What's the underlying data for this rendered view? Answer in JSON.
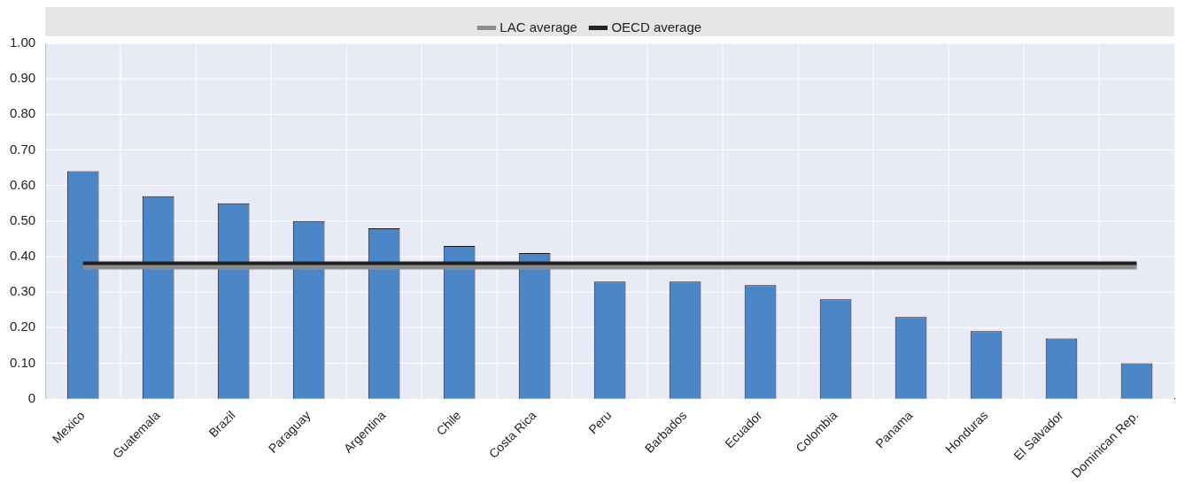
{
  "chart_data": {
    "type": "bar",
    "categories": [
      "Mexico",
      "Guatemala",
      "Brazil",
      "Paraguay",
      "Argentina",
      "Chile",
      "Costa Rica",
      "Peru",
      "Barbados",
      "Ecuador",
      "Colombia",
      "Panama",
      "Honduras",
      "El Salvador",
      "Dominican Rep."
    ],
    "series": [
      {
        "color": "#4a86c8",
        "values": [
          0.64,
          0.57,
          0.55,
          0.5,
          0.48,
          0.43,
          0.41,
          0.33,
          0.33,
          0.32,
          0.28,
          0.23,
          0.19,
          0.17,
          0.1
        ]
      },
      {
        "type": "line",
        "name": "LAC average",
        "color": "#8c8c8c",
        "values": [
          0.37,
          0.37,
          0.37,
          0.37,
          0.37,
          0.37,
          0.37,
          0.37,
          0.37,
          0.37,
          0.37,
          0.37,
          0.37,
          0.37,
          0.37
        ]
      },
      {
        "type": "line",
        "name": "OECD average",
        "color": "#222222",
        "values": [
          0.38,
          0.38,
          0.38,
          0.38,
          0.38,
          0.38,
          0.38,
          0.38,
          0.38,
          0.38,
          0.38,
          0.38,
          0.38,
          0.38,
          0.38
        ]
      }
    ],
    "ylim": [
      0,
      1
    ],
    "yticks": [
      0,
      {
        "value": 0.1,
        "label": "0.10"
      },
      {
        "value": 0.2,
        "label": "0.20"
      },
      {
        "value": 0.3,
        "label": "0.30"
      },
      {
        "value": 0.4,
        "label": "0.40"
      },
      {
        "value": 0.5,
        "label": "0.50"
      },
      {
        "value": 0.6,
        "label": "0.60"
      },
      {
        "value": 0.7,
        "label": "0.70"
      },
      {
        "value": 0.8,
        "label": "0.80"
      },
      {
        "value": 0.9,
        "label": "0.90"
      },
      {
        "value": 1,
        "label": "1.00"
      }
    ],
    "grid": true,
    "legend": "top",
    "marker": "none"
  }
}
